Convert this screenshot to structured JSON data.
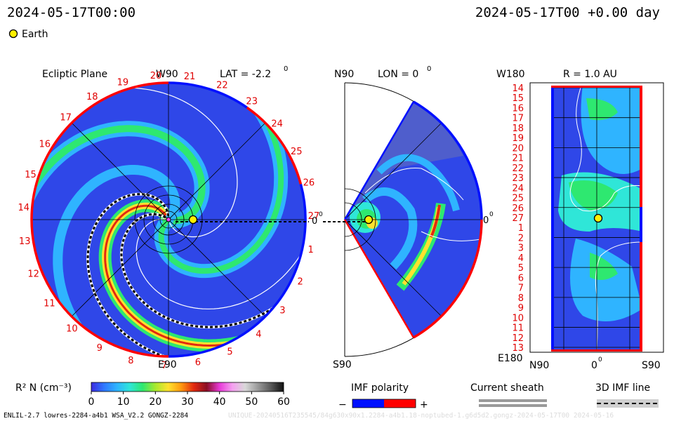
{
  "header": {
    "datetime_left": "2024-05-17T00:00",
    "datetime_right": "2024-05-17T00 +0.00 day"
  },
  "legend_top": {
    "earth_label": "Earth",
    "earth_color": "#ffef00"
  },
  "panels": {
    "ecliptic": {
      "title": "Ecliptic Plane",
      "top_label": "W90",
      "lat_label": "LAT = -2.2",
      "degree_mark": "0",
      "bottom_label": "E90",
      "right_label": "0",
      "right_label_mark": "0"
    },
    "meridional": {
      "top_label": "N90",
      "lon_label": "LON = 0",
      "degree_mark": "0",
      "bottom_label": "S90",
      "right_label": "0",
      "right_label_mark": "0"
    },
    "radial": {
      "top_left_label": "W180",
      "title": "R = 1.0 AU",
      "bottom_left_label": "E180",
      "bottom_n90": "N90",
      "bottom_zero": "0",
      "bottom_zero_mark": "0",
      "bottom_s90": "S90"
    }
  },
  "rim_numbers": [
    "17",
    "18",
    "19",
    "20",
    "21",
    "22",
    "23",
    "24",
    "25",
    "26",
    "27",
    "1",
    "2",
    "3",
    "4",
    "5",
    "6",
    "7",
    "8",
    "9",
    "10",
    "11",
    "12",
    "13",
    "14",
    "15",
    "16"
  ],
  "radial_rows": [
    "14",
    "15",
    "16",
    "17",
    "18",
    "19",
    "20",
    "21",
    "22",
    "23",
    "24",
    "25",
    "26",
    "27",
    "1",
    "2",
    "3",
    "4",
    "5",
    "6",
    "7",
    "8",
    "9",
    "10",
    "11",
    "12",
    "13"
  ],
  "colorbar": {
    "label": "R² N (cm⁻³)",
    "ticks": [
      "0",
      "10",
      "20",
      "30",
      "40",
      "50",
      "60"
    ],
    "stops": [
      "#3c2ce0",
      "#2f78ff",
      "#2fb4ff",
      "#2fe6d8",
      "#2ee870",
      "#a8e82e",
      "#ffe22e",
      "#ff9a10",
      "#e22a10",
      "#8a0e24",
      "#e83ad8",
      "#f5a0f0",
      "#d8d8d8",
      "#9a9a9a",
      "#5a5a5a",
      "#101010"
    ]
  },
  "bottom_legends": {
    "imf_title": "IMF polarity",
    "imf_minus": "−",
    "imf_plus": "+",
    "imf_neg_color": "#0010ff",
    "imf_pos_color": "#ff0000",
    "current_sheath": "Current sheath",
    "imf_line": "3D IMF line"
  },
  "footer": {
    "left": "ENLIL-2.7 lowres-2284-a4b1 WSA_V2.2 GONGZ-2284",
    "right": "UNIQUE-20240516T235545/84g630x90x1.2284-a4b1.18-noptubed-1.g6d5d2.gongz-2024-05-17T00 2024-05-16"
  },
  "plot_colors": {
    "background_fill": "#2f47e8",
    "band_cyan": "#2fb4ff",
    "band_green": "#2ee870",
    "band_yellow": "#ffe22e",
    "band_red": "#e22a10",
    "grid": "#000000"
  }
}
